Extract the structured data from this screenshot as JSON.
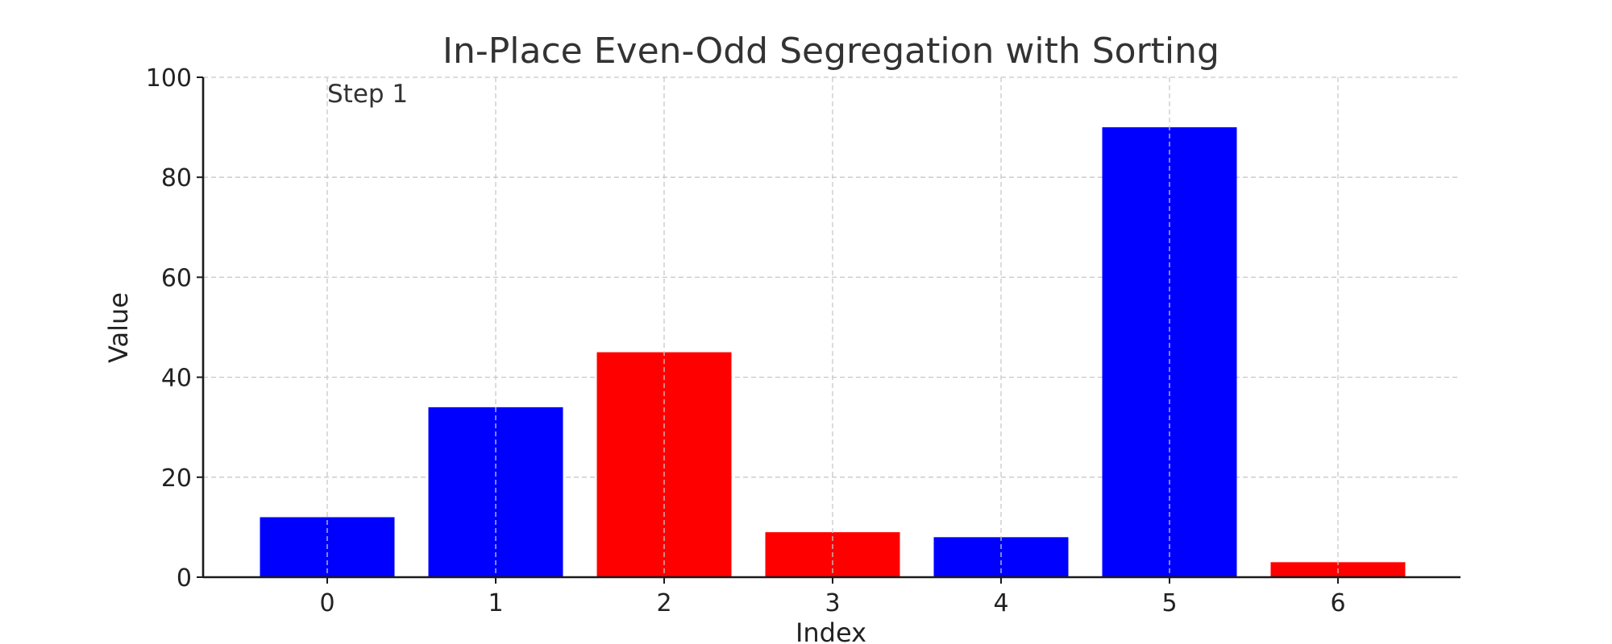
{
  "chart_data": {
    "type": "bar",
    "title": "In-Place Even-Odd Segregation with Sorting",
    "xlabel": "Index",
    "ylabel": "Value",
    "categories": [
      "0",
      "1",
      "2",
      "3",
      "4",
      "5",
      "6"
    ],
    "values": [
      12,
      34,
      45,
      9,
      8,
      90,
      3
    ],
    "bar_colors": [
      "#0000ff",
      "#0000ff",
      "#ff0000",
      "#ff0000",
      "#0000ff",
      "#0000ff",
      "#ff0000"
    ],
    "ylim": [
      0,
      100
    ],
    "yticks": [
      "0",
      "20",
      "40",
      "60",
      "80",
      "100"
    ],
    "grid": true,
    "annotation": "Step 1"
  }
}
